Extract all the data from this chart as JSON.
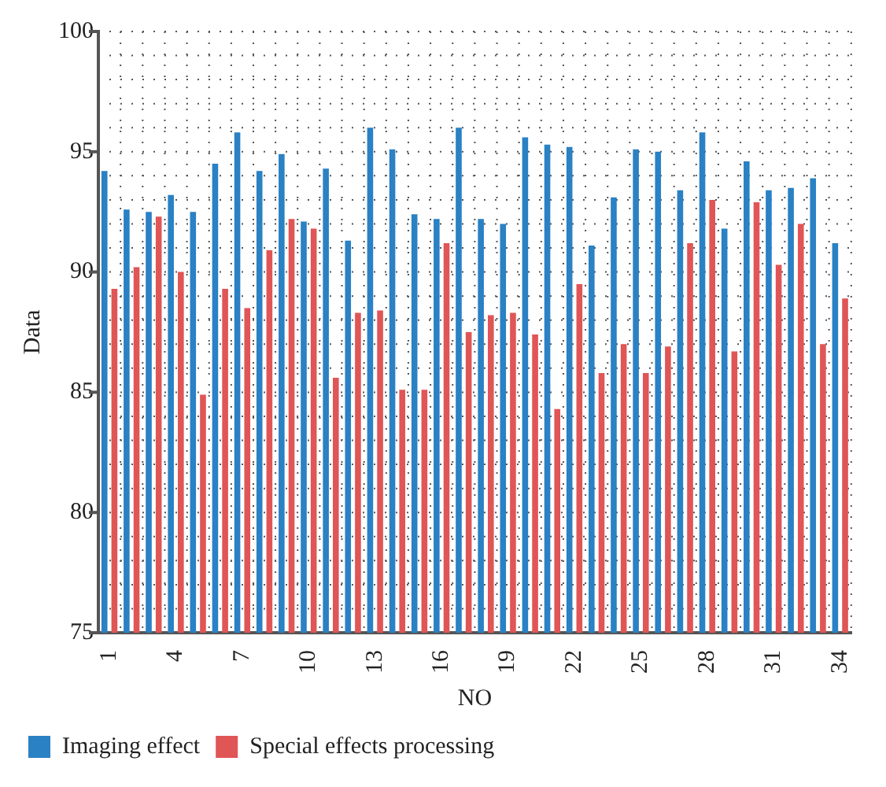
{
  "chart_data": {
    "type": "bar",
    "xlabel": "NO",
    "ylabel": "Data",
    "categories": [
      "1",
      null,
      null,
      "4",
      null,
      null,
      "7",
      null,
      null,
      "10",
      null,
      null,
      "13",
      null,
      null,
      "16",
      null,
      null,
      "19",
      null,
      null,
      "22",
      null,
      null,
      "25",
      null,
      null,
      "28",
      null,
      null,
      "31",
      null,
      null,
      "34"
    ],
    "series": [
      {
        "name": "Imaging effect",
        "color": "#2a81c4",
        "values": [
          94.2,
          92.6,
          92.5,
          93.2,
          92.5,
          94.5,
          95.8,
          94.2,
          94.9,
          92.1,
          94.3,
          91.3,
          96.0,
          95.1,
          92.4,
          92.2,
          96.0,
          92.2,
          92.0,
          95.6,
          95.3,
          95.2,
          91.1,
          93.1,
          95.1,
          95.0,
          93.4,
          95.8,
          91.8,
          94.6,
          93.4,
          93.5,
          93.9,
          91.2
        ]
      },
      {
        "name": "Special effects processing",
        "color": "#e05556",
        "values": [
          89.3,
          90.2,
          92.3,
          90.0,
          84.9,
          89.3,
          88.5,
          90.9,
          92.2,
          91.8,
          85.6,
          88.3,
          88.4,
          85.1,
          85.1,
          91.2,
          87.5,
          88.2,
          88.3,
          87.4,
          84.3,
          89.5,
          85.8,
          87.0,
          85.8,
          86.9,
          91.2,
          93.0,
          86.7,
          92.9,
          90.3,
          92.0,
          87.0,
          88.9
        ]
      }
    ],
    "ylim": [
      75,
      100
    ],
    "yticks": [
      75,
      {
        "value": 76,
        "label": null
      },
      {
        "value": 77,
        "label": null
      },
      {
        "value": 78,
        "label": null
      },
      {
        "value": 79,
        "label": null
      },
      80,
      {
        "value": 81,
        "label": null
      },
      {
        "value": 82,
        "label": null
      },
      {
        "value": 83,
        "label": null
      },
      {
        "value": 84,
        "label": null
      },
      85,
      {
        "value": 86,
        "label": null
      },
      {
        "value": 87,
        "label": null
      },
      {
        "value": 88,
        "label": null
      },
      {
        "value": 89,
        "label": null
      },
      90,
      {
        "value": 91,
        "label": null
      },
      {
        "value": 92,
        "label": null
      },
      {
        "value": 93,
        "label": null
      },
      {
        "value": 94,
        "label": null
      },
      95,
      {
        "value": 96,
        "label": null
      },
      {
        "value": 97,
        "label": null
      },
      {
        "value": 98,
        "label": null
      },
      {
        "value": 99,
        "label": null
      },
      100
    ],
    "grid": true,
    "line_style": "dotted",
    "legend": "bottom"
  }
}
